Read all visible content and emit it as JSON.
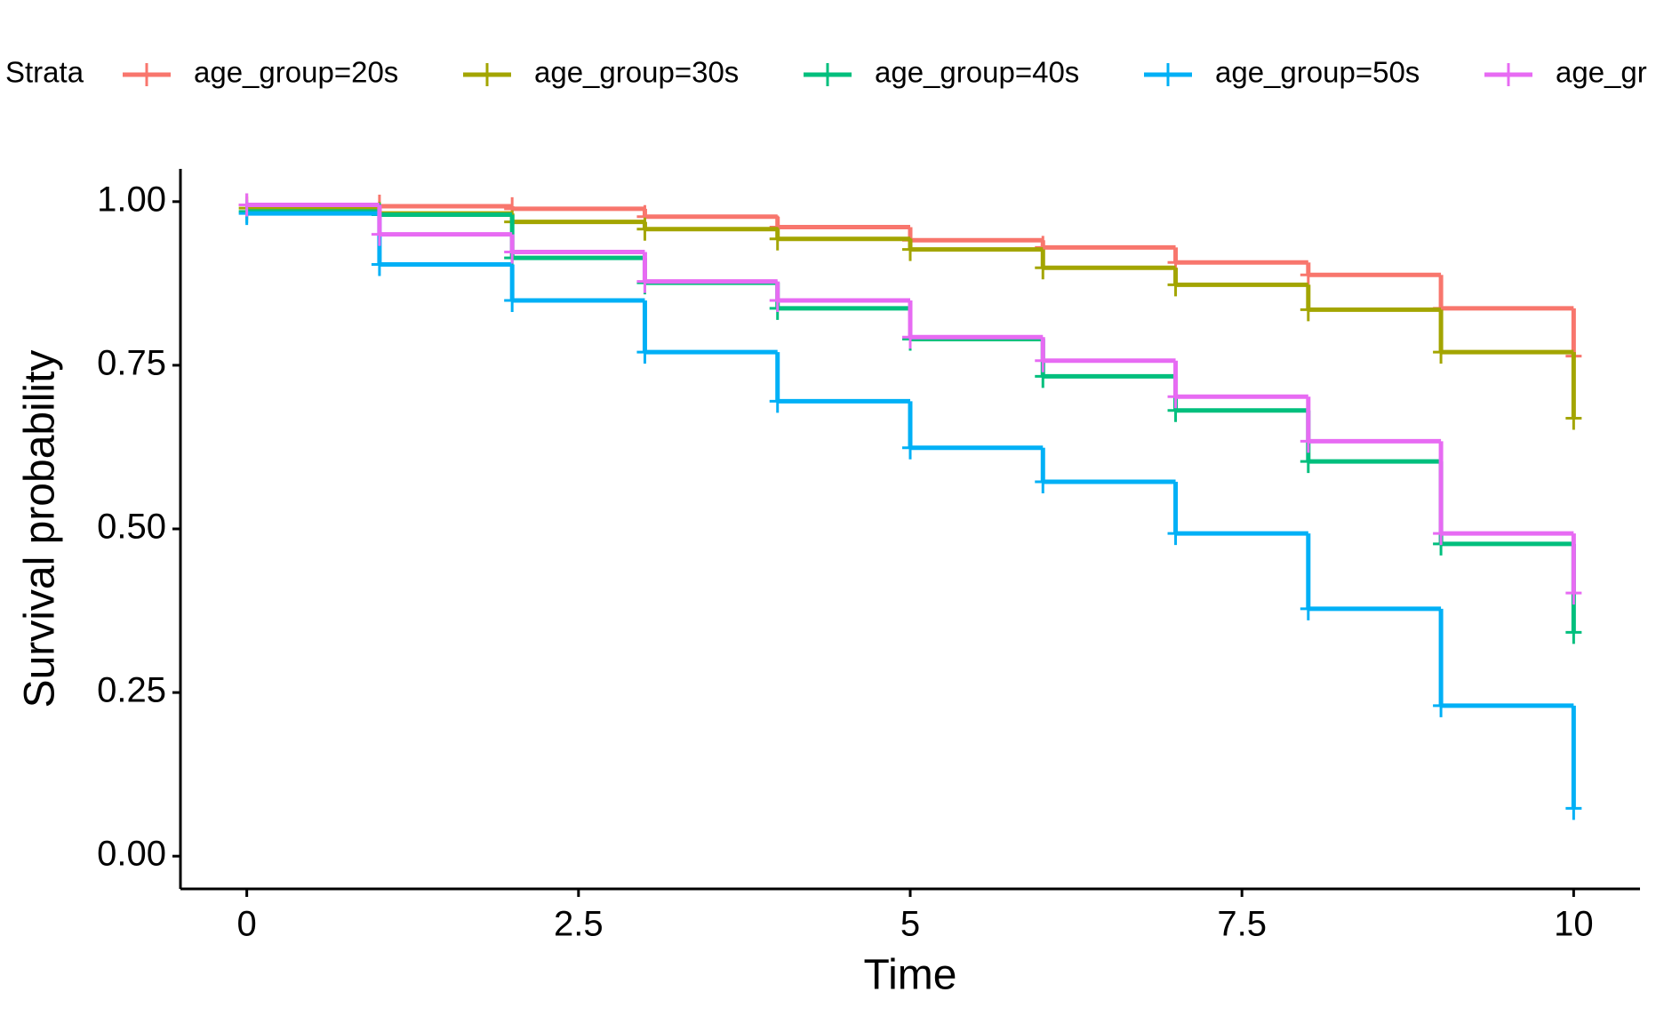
{
  "chart_data": {
    "type": "step",
    "legend_title": "Strata",
    "x_label": "Time",
    "y_label": "Survival probability",
    "x": [
      0,
      1,
      2,
      3,
      4,
      5,
      6,
      7,
      8,
      9,
      10
    ],
    "series": [
      {
        "name": "age_group=20s",
        "color": "#F8766D",
        "values": [
          0.995,
          0.993,
          0.989,
          0.977,
          0.961,
          0.941,
          0.93,
          0.907,
          0.888,
          0.837,
          0.764
        ]
      },
      {
        "name": "age_group=30s",
        "color": "#A3A500",
        "values": [
          0.99,
          0.982,
          0.969,
          0.958,
          0.943,
          0.927,
          0.899,
          0.873,
          0.835,
          0.77,
          0.669
        ]
      },
      {
        "name": "age_group=40s",
        "color": "#00BF7D",
        "values": [
          0.985,
          0.98,
          0.914,
          0.876,
          0.837,
          0.79,
          0.733,
          0.681,
          0.603,
          0.477,
          0.342
        ]
      },
      {
        "name": "age_group=50s",
        "color": "#00B0F6",
        "values": [
          0.982,
          0.904,
          0.849,
          0.77,
          0.695,
          0.624,
          0.572,
          0.493,
          0.378,
          0.23,
          0.073
        ]
      },
      {
        "name": "age_gr",
        "color": "#E76BF3",
        "values": [
          0.995,
          0.95,
          0.923,
          0.878,
          0.849,
          0.793,
          0.757,
          0.702,
          0.634,
          0.493,
          0.402
        ]
      }
    ],
    "xlim": [
      -0.5,
      10.5
    ],
    "ylim": [
      -0.05,
      1.05
    ],
    "xticks": [
      0,
      2.5,
      5,
      7.5,
      10
    ],
    "yticks": [
      {
        "value": 0,
        "label": "0.00"
      },
      {
        "value": 0.25,
        "label": "0.25"
      },
      {
        "value": 0.5,
        "label": "0.50"
      },
      {
        "value": 0.75,
        "label": "0.75"
      },
      {
        "value": 1,
        "label": "1.00"
      }
    ],
    "grid": false,
    "legend_position": "top"
  }
}
